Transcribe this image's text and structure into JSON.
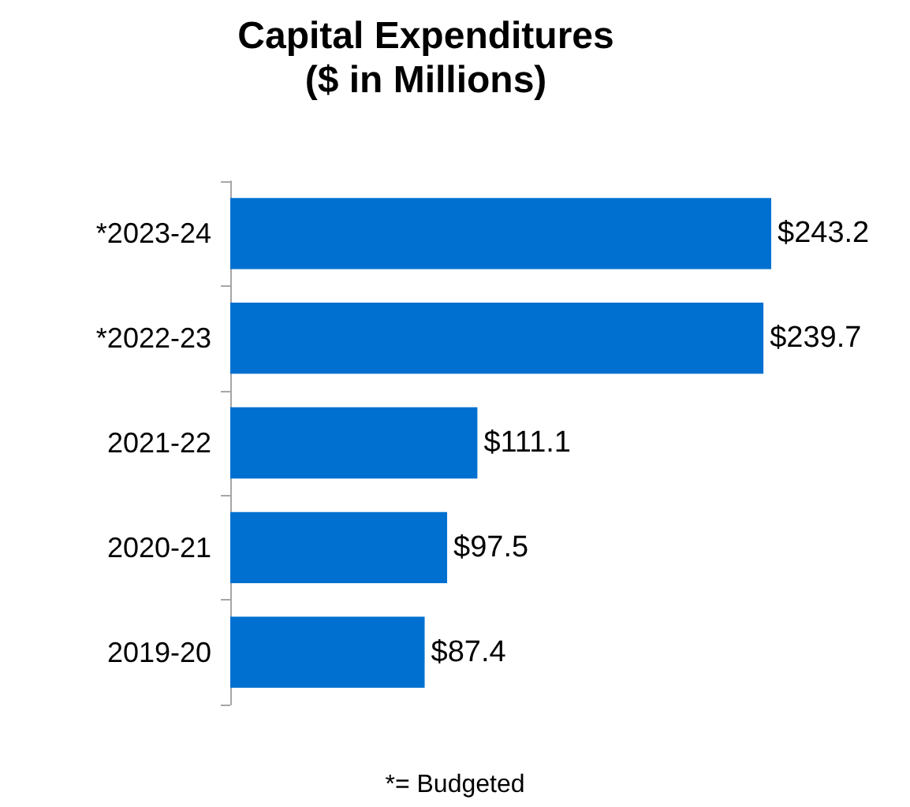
{
  "chart_data": {
    "type": "bar",
    "orientation": "horizontal",
    "title": "Capital Expenditures",
    "subtitle": "($ in Millions)",
    "categories": [
      "*2023-24",
      "*2022-23",
      "2021-22",
      "2020-21",
      "2019-20"
    ],
    "values": [
      243.2,
      239.7,
      111.1,
      97.5,
      87.4
    ],
    "value_labels": [
      "$243.2",
      "$239.7",
      "$111.1",
      "$97.5",
      "$87.4"
    ],
    "color": "#0070d0",
    "annotations": [
      "*= Budgeted"
    ]
  }
}
